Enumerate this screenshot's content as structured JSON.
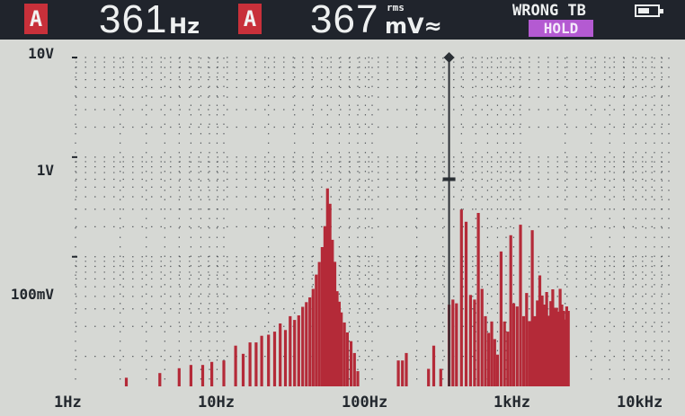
{
  "readout1": {
    "channel": "A",
    "value": "361",
    "unit": "Hz"
  },
  "readout2": {
    "channel": "A",
    "value": "367",
    "unit_top": "rms",
    "unit": "mV≈"
  },
  "status": {
    "text": "WRONG TB",
    "hold": "HOLD",
    "battery_icon": "battery-icon"
  },
  "colors": {
    "bar": "#b42a38",
    "topbar": "#20242c",
    "badge": "#c8303a",
    "hold": "#b45ad2",
    "background": "#d6d8d4"
  },
  "chart_data": {
    "type": "bar",
    "title": "",
    "x_scale": "log",
    "y_scale": "log",
    "xlim": [
      1,
      10000
    ],
    "ylim": [
      0.005,
      10
    ],
    "x_tick_labels": [
      "1Hz",
      "10Hz",
      "100Hz",
      "1kHz",
      "10kHz"
    ],
    "y_tick_labels": [
      "10V",
      "1V",
      "100mV"
    ],
    "grid": true,
    "cursor_freq": 330,
    "cursor_marker_level": 0.6,
    "series": [
      {
        "x": [
          2.2,
          3.7,
          5.0,
          6.0,
          7.2,
          8.3,
          10.0,
          12.0,
          13.5,
          15.0,
          16.5,
          18.0,
          20.0,
          22.0,
          24.0,
          26.0,
          28.0,
          30.0,
          32.0,
          34.0,
          36.0,
          38.0,
          40.0,
          42.0,
          44.0,
          46.0,
          48.0,
          50.0,
          52.0,
          54.0,
          56.0,
          58.0,
          60.0,
          62.0,
          65.0,
          68.0,
          72.0,
          76.0,
          80.0,
          150.0,
          160.0,
          170.0,
          240.0,
          260.0,
          290.0,
          330.0,
          350.0,
          370.0,
          400.0,
          430.0,
          460.0,
          490.0,
          520.0,
          550.0,
          580.0,
          610.0,
          640.0,
          670.0,
          700.0,
          740.0,
          780.0,
          820.0,
          860.0,
          900.0,
          950.0,
          1000.0,
          1050.0,
          1100.0,
          1150.0,
          1200.0,
          1250.0,
          1300.0,
          1350.0,
          1400.0,
          1450.0,
          1500.0,
          1550.0,
          1600.0,
          1650.0,
          1700.0,
          1750.0,
          1800.0,
          1850.0,
          1900.0,
          1950.0,
          2000.0,
          2050.0,
          2100.0
        ],
        "values": [
          0.0061,
          0.0068,
          0.0076,
          0.0082,
          0.0082,
          0.0088,
          0.0091,
          0.0128,
          0.0106,
          0.0138,
          0.0138,
          0.0161,
          0.0165,
          0.0177,
          0.0214,
          0.0184,
          0.0253,
          0.0232,
          0.0258,
          0.0314,
          0.035,
          0.0391,
          0.0476,
          0.0662,
          0.0886,
          0.125,
          0.203,
          0.485,
          0.34,
          0.148,
          0.0889,
          0.0451,
          0.0354,
          0.0276,
          0.0219,
          0.0174,
          0.0142,
          0.0108,
          0.0071,
          0.0091,
          0.0091,
          0.0108,
          0.0075,
          0.0128,
          0.0075,
          0.033,
          0.0372,
          0.0341,
          0.2976,
          0.2244,
          0.0413,
          0.0372,
          0.2754,
          0.0476,
          0.0253,
          0.0172,
          0.0224,
          0.0149,
          0.0104,
          0.1129,
          0.0224,
          0.0177,
          0.1645,
          0.0341,
          0.0317,
          0.2098,
          0.0253,
          0.0433,
          0.0226,
          0.1848,
          0.0253,
          0.0364,
          0.065,
          0.0408,
          0.0331,
          0.0443,
          0.0256,
          0.0358,
          0.0471,
          0.0308,
          0.0308,
          0.0281,
          0.0476,
          0.0331,
          0.0286,
          0.0234,
          0.0317,
          0.0286
        ]
      }
    ]
  }
}
